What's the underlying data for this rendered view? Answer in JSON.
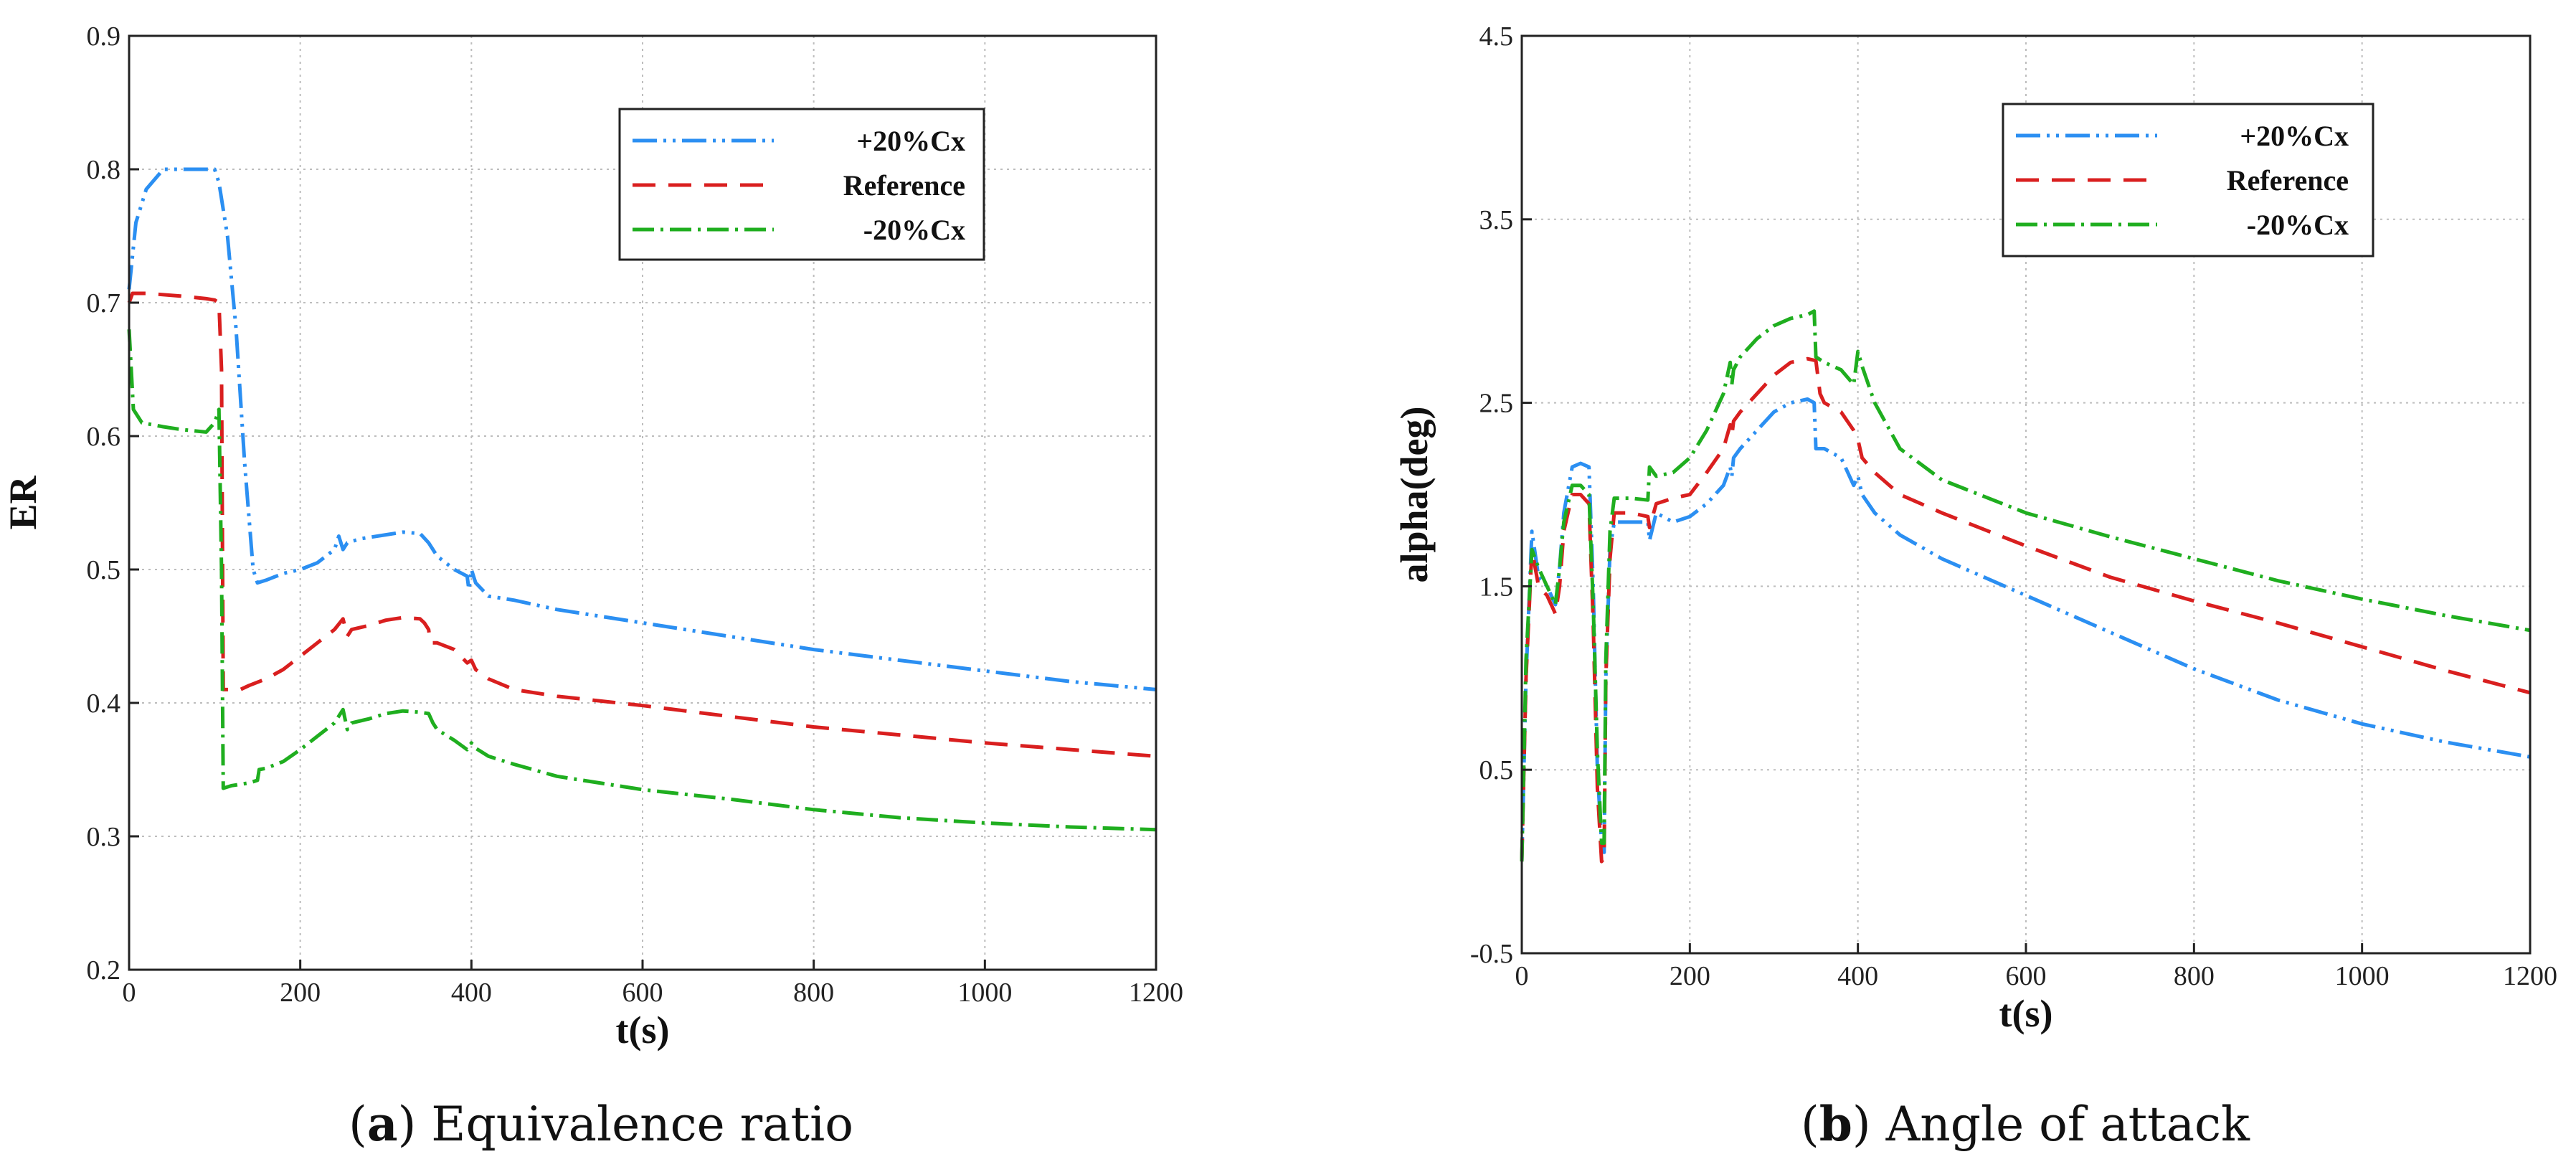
{
  "colors": {
    "plus": "#2b8ff2",
    "ref": "#d91f1f",
    "minus": "#1fae1f",
    "grid": "#bdbdbd",
    "frame": "#222222"
  },
  "chart_data": [
    {
      "type": "line",
      "id": "a",
      "caption_letter": "a",
      "caption_text": " Equivalence ratio",
      "xlabel": "t(s)",
      "ylabel": "ER",
      "xlim": [
        0,
        1200
      ],
      "ylim": [
        0.2,
        0.9
      ],
      "xticks": [
        0,
        200,
        400,
        600,
        800,
        1000,
        1200
      ],
      "yticks": [
        0.2,
        0.3,
        0.4,
        0.5,
        0.6,
        0.7,
        0.8,
        0.9
      ],
      "xtick_labels": [
        "0",
        "200",
        "400",
        "600",
        "800",
        "1000",
        "1200"
      ],
      "ytick_labels": [
        "0.2",
        "0.3",
        "0.4",
        "0.5",
        "0.6",
        "0.7",
        "0.8",
        "0.9"
      ],
      "legend": {
        "position": "top-right",
        "entries": [
          "+20%Cx",
          "Reference",
          "-20%Cx"
        ]
      },
      "series": [
        {
          "name": "+20%Cx",
          "color_key": "plus",
          "dash": "34 9 4 9 4 9",
          "x": [
            0,
            8,
            20,
            40,
            60,
            80,
            100,
            105,
            115,
            125,
            135,
            145,
            150,
            160,
            180,
            200,
            220,
            240,
            245,
            250,
            255,
            270,
            300,
            320,
            340,
            350,
            360,
            380,
            395,
            397,
            400,
            405,
            420,
            450,
            500,
            600,
            700,
            800,
            900,
            1000,
            1100,
            1200
          ],
          "y": [
            0.71,
            0.76,
            0.785,
            0.8,
            0.8,
            0.8,
            0.8,
            0.79,
            0.75,
            0.68,
            0.58,
            0.5,
            0.49,
            0.492,
            0.497,
            0.5,
            0.505,
            0.515,
            0.525,
            0.515,
            0.52,
            0.523,
            0.526,
            0.528,
            0.527,
            0.52,
            0.51,
            0.5,
            0.495,
            0.485,
            0.5,
            0.49,
            0.48,
            0.477,
            0.47,
            0.46,
            0.45,
            0.44,
            0.432,
            0.424,
            0.416,
            0.41
          ]
        },
        {
          "name": "Reference",
          "color_key": "ref",
          "dash": "32 18",
          "x": [
            0,
            4,
            20,
            60,
            90,
            100,
            105,
            108,
            110,
            120,
            130,
            140,
            160,
            180,
            200,
            220,
            240,
            250,
            255,
            260,
            280,
            300,
            320,
            340,
            345,
            350,
            352,
            360,
            380,
            395,
            400,
            405,
            420,
            450,
            500,
            600,
            700,
            800,
            900,
            1000,
            1100,
            1200
          ],
          "y": [
            0.7,
            0.707,
            0.707,
            0.705,
            0.703,
            0.702,
            0.7,
            0.65,
            0.41,
            0.41,
            0.41,
            0.413,
            0.418,
            0.425,
            0.435,
            0.445,
            0.455,
            0.463,
            0.45,
            0.455,
            0.458,
            0.462,
            0.464,
            0.463,
            0.46,
            0.455,
            0.445,
            0.445,
            0.44,
            0.43,
            0.432,
            0.425,
            0.418,
            0.41,
            0.405,
            0.398,
            0.39,
            0.382,
            0.376,
            0.37,
            0.365,
            0.36
          ]
        },
        {
          "name": "-20%Cx",
          "color_key": "minus",
          "dash": "30 9 4 9",
          "x": [
            0,
            5,
            15,
            40,
            60,
            90,
            100,
            105,
            108,
            110,
            120,
            140,
            150,
            152,
            160,
            180,
            200,
            220,
            240,
            250,
            255,
            260,
            280,
            300,
            320,
            340,
            350,
            355,
            360,
            380,
            395,
            400,
            405,
            420,
            450,
            500,
            600,
            700,
            800,
            900,
            1000,
            1100,
            1200
          ],
          "y": [
            0.68,
            0.62,
            0.61,
            0.607,
            0.605,
            0.603,
            0.61,
            0.62,
            0.5,
            0.336,
            0.338,
            0.34,
            0.342,
            0.35,
            0.351,
            0.356,
            0.365,
            0.375,
            0.385,
            0.395,
            0.38,
            0.385,
            0.388,
            0.392,
            0.394,
            0.393,
            0.392,
            0.385,
            0.38,
            0.372,
            0.365,
            0.37,
            0.366,
            0.36,
            0.354,
            0.345,
            0.335,
            0.328,
            0.32,
            0.314,
            0.31,
            0.307,
            0.305
          ]
        }
      ]
    },
    {
      "type": "line",
      "id": "b",
      "caption_letter": "b",
      "caption_text": " Angle of attack",
      "xlabel": "t(s)",
      "ylabel": "alpha(deg)",
      "xlim": [
        0,
        1200
      ],
      "ylim": [
        -0.5,
        4.5
      ],
      "xticks": [
        0,
        200,
        400,
        600,
        800,
        1000,
        1200
      ],
      "yticks": [
        -0.5,
        0.5,
        1.5,
        2.5,
        3.5,
        4.5
      ],
      "xtick_labels": [
        "0",
        "200",
        "400",
        "600",
        "800",
        "1000",
        "1200"
      ],
      "ytick_labels": [
        "-0.5",
        "0.5",
        "1.5",
        "2.5",
        "3.5",
        "4.5"
      ],
      "legend": {
        "position": "top-right",
        "entries": [
          "+20%Cx",
          "Reference",
          "-20%Cx"
        ]
      },
      "series": [
        {
          "name": "+20%Cx",
          "color_key": "plus",
          "dash": "34 9 4 9 4 9",
          "x": [
            0,
            5,
            12,
            20,
            30,
            40,
            45,
            50,
            60,
            70,
            80,
            85,
            90,
            95,
            98,
            100,
            105,
            110,
            130,
            150,
            152,
            160,
            180,
            200,
            220,
            240,
            248,
            250,
            252,
            260,
            280,
            300,
            320,
            340,
            348,
            350,
            360,
            380,
            395,
            400,
            405,
            420,
            450,
            500,
            600,
            700,
            800,
            900,
            1000,
            1100,
            1200
          ],
          "y": [
            0.0,
            1.0,
            1.8,
            1.55,
            1.5,
            1.4,
            1.6,
            1.9,
            2.15,
            2.17,
            2.15,
            1.5,
            0.5,
            0.1,
            0.05,
            1.0,
            1.7,
            1.85,
            1.85,
            1.85,
            1.75,
            1.9,
            1.85,
            1.88,
            1.95,
            2.05,
            2.15,
            2.1,
            2.2,
            2.25,
            2.35,
            2.45,
            2.5,
            2.52,
            2.5,
            2.25,
            2.25,
            2.2,
            2.05,
            2.1,
            2.0,
            1.9,
            1.78,
            1.65,
            1.45,
            1.25,
            1.05,
            0.88,
            0.75,
            0.65,
            0.57
          ]
        },
        {
          "name": "Reference",
          "color_key": "ref",
          "dash": "32 18",
          "x": [
            0,
            5,
            12,
            20,
            30,
            40,
            45,
            50,
            60,
            70,
            80,
            85,
            90,
            95,
            98,
            100,
            105,
            110,
            130,
            150,
            152,
            160,
            180,
            200,
            220,
            240,
            248,
            250,
            252,
            260,
            280,
            300,
            320,
            340,
            350,
            355,
            360,
            380,
            395,
            400,
            405,
            420,
            450,
            500,
            600,
            700,
            800,
            900,
            1000,
            1100,
            1200
          ],
          "y": [
            0.0,
            1.0,
            1.7,
            1.5,
            1.45,
            1.35,
            1.5,
            1.8,
            2.0,
            2.0,
            1.95,
            1.3,
            0.4,
            0.0,
            0.02,
            1.0,
            1.65,
            1.9,
            1.9,
            1.88,
            1.82,
            1.95,
            1.98,
            2.0,
            2.12,
            2.25,
            2.38,
            2.32,
            2.4,
            2.45,
            2.55,
            2.65,
            2.72,
            2.74,
            2.73,
            2.55,
            2.5,
            2.45,
            2.35,
            2.3,
            2.2,
            2.12,
            2.0,
            1.9,
            1.72,
            1.55,
            1.42,
            1.3,
            1.17,
            1.04,
            0.92
          ]
        },
        {
          "name": "-20%Cx",
          "color_key": "minus",
          "dash": "30 9 4 9",
          "x": [
            0,
            5,
            12,
            20,
            30,
            40,
            45,
            50,
            60,
            70,
            80,
            85,
            90,
            95,
            98,
            100,
            105,
            110,
            130,
            150,
            152,
            160,
            180,
            200,
            220,
            240,
            248,
            250,
            252,
            260,
            280,
            300,
            320,
            340,
            348,
            350,
            360,
            380,
            395,
            400,
            405,
            420,
            450,
            500,
            600,
            700,
            800,
            900,
            1000,
            1100,
            1200
          ],
          "y": [
            0.0,
            1.1,
            1.7,
            1.6,
            1.5,
            1.4,
            1.6,
            1.85,
            2.05,
            2.05,
            2.0,
            1.4,
            0.6,
            0.1,
            0.1,
            1.1,
            1.8,
            1.98,
            1.98,
            1.97,
            2.15,
            2.1,
            2.12,
            2.2,
            2.35,
            2.55,
            2.72,
            2.6,
            2.68,
            2.75,
            2.85,
            2.92,
            2.96,
            2.98,
            3.0,
            2.75,
            2.72,
            2.68,
            2.6,
            2.78,
            2.7,
            2.5,
            2.25,
            2.08,
            1.9,
            1.77,
            1.65,
            1.53,
            1.43,
            1.34,
            1.26
          ]
        }
      ]
    }
  ]
}
